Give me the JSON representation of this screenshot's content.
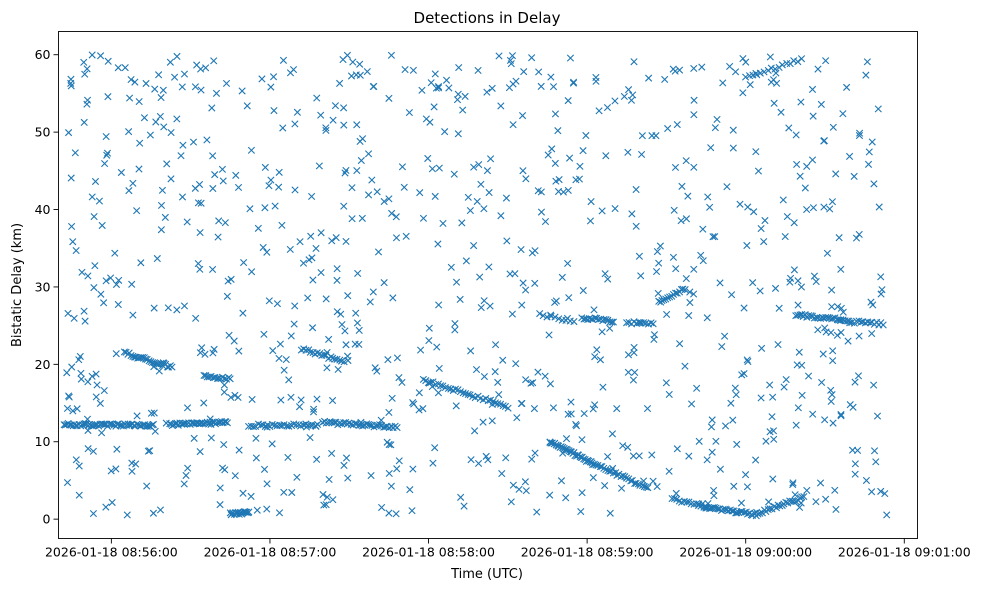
{
  "chart_data": {
    "type": "scatter",
    "title": "Detections in Delay",
    "xlabel": "Time (UTC)",
    "ylabel": "Bistatic Delay (km)",
    "marker": "x",
    "color": "#1f77b4",
    "x_tick_labels": [
      "2026-01-18 08:56:00",
      "2026-01-18 08:57:00",
      "2026-01-18 08:58:00",
      "2026-01-18 08:59:00",
      "2026-01-18 09:00:00",
      "2026-01-18 09:01:00"
    ],
    "y_tick_labels": [
      "0",
      "10",
      "20",
      "30",
      "40",
      "50",
      "60"
    ],
    "xlim": [
      "2026-01-18 08:55:40",
      "2026-01-18 09:01:05"
    ],
    "ylim": [
      -2.5,
      63
    ],
    "grid": false,
    "series": [
      {
        "tracks": [
          {
            "x_start": "2026-01-18 08:55:42",
            "x_end": "2026-01-18 08:56:16",
            "y_start": 12.2,
            "y_end": 12.1,
            "count": 60
          },
          {
            "x_start": "2026-01-18 08:56:22",
            "x_end": "2026-01-18 08:56:44",
            "y_start": 12.2,
            "y_end": 12.5,
            "count": 40
          },
          {
            "x_start": "2026-01-18 08:56:52",
            "x_end": "2026-01-18 08:57:18",
            "y_start": 12.1,
            "y_end": 12.2,
            "count": 30
          },
          {
            "x_start": "2026-01-18 08:57:20",
            "x_end": "2026-01-18 08:57:48",
            "y_start": 12.5,
            "y_end": 11.9,
            "count": 40
          },
          {
            "x_start": "2026-01-18 08:56:05",
            "x_end": "2026-01-18 08:56:23",
            "y_start": 21.5,
            "y_end": 19.6,
            "count": 30
          },
          {
            "x_start": "2026-01-18 08:56:35",
            "x_end": "2026-01-18 08:56:45",
            "y_start": 18.6,
            "y_end": 18.1,
            "count": 15
          },
          {
            "x_start": "2026-01-18 08:56:45",
            "x_end": "2026-01-18 08:56:52",
            "y_start": 0.7,
            "y_end": 0.9,
            "count": 20
          },
          {
            "x_start": "2026-01-18 08:57:12",
            "x_end": "2026-01-18 08:57:28",
            "y_start": 22.0,
            "y_end": 20.3,
            "count": 20
          },
          {
            "x_start": "2026-01-18 08:57:58",
            "x_end": "2026-01-18 08:58:30",
            "y_start": 18.0,
            "y_end": 14.5,
            "count": 35
          },
          {
            "x_start": "2026-01-18 08:58:46",
            "x_end": "2026-01-18 08:59:02",
            "y_start": 10.0,
            "y_end": 7.2,
            "count": 35
          },
          {
            "x_start": "2026-01-18 08:59:02",
            "x_end": "2026-01-18 08:59:23",
            "y_start": 7.2,
            "y_end": 4.0,
            "count": 30
          },
          {
            "x_start": "2026-01-18 08:58:58",
            "x_end": "2026-01-18 08:59:10",
            "y_start": 26.0,
            "y_end": 25.6,
            "count": 18
          },
          {
            "x_start": "2026-01-18 08:59:15",
            "x_end": "2026-01-18 08:59:25",
            "y_start": 25.4,
            "y_end": 25.3,
            "count": 12
          },
          {
            "x_start": "2026-01-18 08:59:27",
            "x_end": "2026-01-18 08:59:37",
            "y_start": 28.0,
            "y_end": 29.8,
            "count": 15
          },
          {
            "x_start": "2026-01-18 08:59:32",
            "x_end": "2026-01-18 08:59:45",
            "y_start": 2.6,
            "y_end": 1.6,
            "count": 15
          },
          {
            "x_start": "2026-01-18 08:59:45",
            "x_end": "2026-01-18 09:00:04",
            "y_start": 1.5,
            "y_end": 0.6,
            "count": 30
          },
          {
            "x_start": "2026-01-18 09:00:04",
            "x_end": "2026-01-18 09:00:22",
            "y_start": 0.7,
            "y_end": 2.8,
            "count": 25
          },
          {
            "x_start": "2026-01-18 09:00:19",
            "x_end": "2026-01-18 09:00:36",
            "y_start": 26.4,
            "y_end": 25.8,
            "count": 25
          },
          {
            "x_start": "2026-01-18 09:00:36",
            "x_end": "2026-01-18 09:00:52",
            "y_start": 25.6,
            "y_end": 25.2,
            "count": 20
          },
          {
            "x_start": "2026-01-18 09:00:00",
            "x_end": "2026-01-18 09:00:21",
            "y_start": 57.0,
            "y_end": 59.4,
            "count": 16
          },
          {
            "x_start": "2026-01-18 08:58:42",
            "x_end": "2026-01-18 08:58:55",
            "y_start": 26.5,
            "y_end": 25.5,
            "count": 10
          }
        ],
        "scatter_count": 900
      }
    ]
  }
}
